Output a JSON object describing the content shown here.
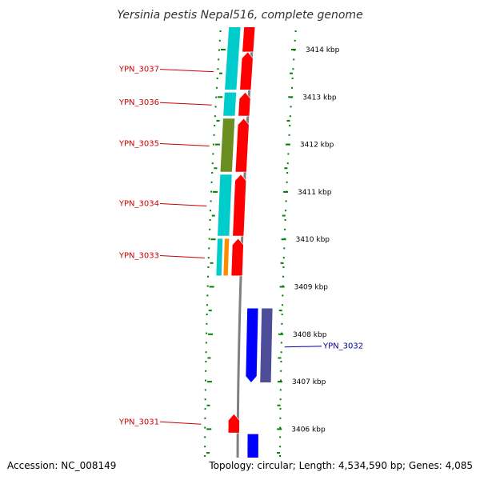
{
  "title": "Yersinia pestis Nepal516, complete genome",
  "footer": {
    "accession": "Accession: NC_008149",
    "topology": "Topology: circular; Length: 4,534,590 bp; Genes: 4,085"
  },
  "colors": {
    "forward_gene": "#ff0000",
    "reverse_gene": "#0000ff",
    "reverse_gene_alt": "#4d4d99",
    "cog_cyan": "#00cccc",
    "cog_olive": "#6b8e23",
    "cog_orange": "#ff8c00",
    "tick_green": "#008000",
    "backbone": "#808080",
    "forward_label": "#cc0000",
    "reverse_label": "#000099"
  },
  "axis": {
    "unit": "kbp",
    "tick_labels": [
      "3414 kbp",
      "3413 kbp",
      "3412 kbp",
      "3411 kbp",
      "3410 kbp",
      "3409 kbp",
      "3408 kbp",
      "3407 kbp",
      "3406 kbp"
    ],
    "tick_kbp": [
      3414,
      3413,
      3412,
      3411,
      3410,
      3409,
      3408,
      3407,
      3406
    ]
  },
  "chart_data": {
    "type": "genome-map",
    "title": "Yersinia pestis Nepal516, complete genome",
    "region_kbp": [
      3405.5,
      3414.5
    ],
    "genes": [
      {
        "name": "",
        "strand": "+",
        "start_kbp": 3413.95,
        "end_kbp": 3414.5,
        "label_shown": false
      },
      {
        "name": "YPN_3037",
        "strand": "+",
        "start_kbp": 3413.15,
        "end_kbp": 3413.95,
        "label_shown": true
      },
      {
        "name": "YPN_3036",
        "strand": "+",
        "start_kbp": 3412.6,
        "end_kbp": 3413.1,
        "label_shown": true
      },
      {
        "name": "YPN_3035",
        "strand": "+",
        "start_kbp": 3411.42,
        "end_kbp": 3412.55,
        "label_shown": true
      },
      {
        "name": "YPN_3034",
        "strand": "+",
        "start_kbp": 3410.07,
        "end_kbp": 3411.37,
        "label_shown": true
      },
      {
        "name": "YPN_3033",
        "strand": "+",
        "start_kbp": 3409.23,
        "end_kbp": 3410.02,
        "label_shown": true
      },
      {
        "name": "YPN_3032",
        "strand": "-",
        "start_kbp": 3406.98,
        "end_kbp": 3408.55,
        "label_shown": true
      },
      {
        "name": "YPN_3031",
        "strand": "+",
        "start_kbp": 3405.92,
        "end_kbp": 3406.32,
        "label_shown": true
      },
      {
        "name": "",
        "strand": "-",
        "start_kbp": 3405.0,
        "end_kbp": 3405.9,
        "label_shown": false
      }
    ],
    "cog_blocks": [
      {
        "lane": "outer",
        "color": "cog_cyan",
        "start_kbp": 3413.15,
        "end_kbp": 3414.5
      },
      {
        "lane": "outer",
        "color": "cog_cyan",
        "start_kbp": 3412.6,
        "end_kbp": 3413.1
      },
      {
        "lane": "outer",
        "color": "cog_olive",
        "start_kbp": 3411.42,
        "end_kbp": 3412.55
      },
      {
        "lane": "outer",
        "color": "cog_cyan",
        "start_kbp": 3410.07,
        "end_kbp": 3411.37
      },
      {
        "lane": "outer",
        "color": "cog_cyan",
        "start_kbp": 3409.23,
        "end_kbp": 3410.02
      },
      {
        "lane": "inner",
        "color": "cog_orange",
        "start_kbp": 3409.23,
        "end_kbp": 3410.02
      }
    ]
  }
}
